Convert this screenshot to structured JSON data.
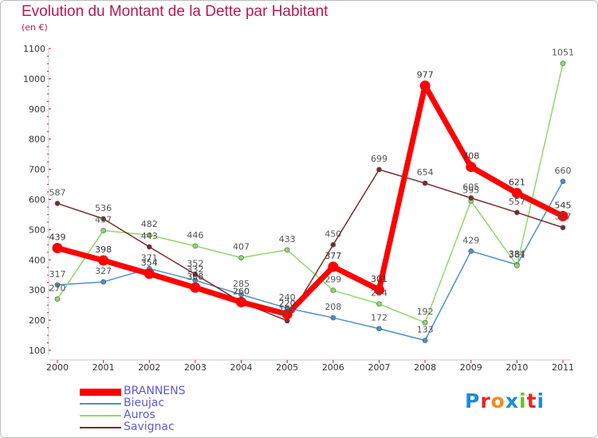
{
  "title": "Evolution du Montant de la Dette par Habitant",
  "unit": "(en €)",
  "logo": [
    "P",
    "r",
    "o",
    "x",
    "i",
    "t",
    "i"
  ],
  "logo_colors": [
    "#1f8bd6",
    "#e2262a",
    "#f28c1a",
    "#1f8bd6",
    "#6cbf2a",
    "#e2262a",
    "#1f8bd6"
  ],
  "chart_data": {
    "type": "line",
    "categories": [
      "2000",
      "2001",
      "2002",
      "2003",
      "2004",
      "2005",
      "2006",
      "2007",
      "2008",
      "2009",
      "2010",
      "2011"
    ],
    "ylim": [
      100,
      1100
    ],
    "yticks": [
      100,
      200,
      300,
      400,
      500,
      600,
      700,
      800,
      900,
      1000,
      1100
    ],
    "grid": false,
    "legend_position": "bottom-left",
    "series": [
      {
        "name": "BRANNENS",
        "color": "#ff0000",
        "thick": true,
        "values": [
          439,
          398,
          354,
          308,
          260,
          220,
          377,
          301,
          977,
          708,
          621,
          545
        ]
      },
      {
        "name": "Bieujac",
        "color": "#4d8fcb",
        "thick": false,
        "values": [
          317,
          327,
          371,
          332,
          285,
          240,
          208,
          172,
          133,
          429,
          384,
          660
        ]
      },
      {
        "name": "Auros",
        "color": "#8ed96a",
        "thick": false,
        "values": [
          270,
          497,
          482,
          446,
          407,
          433,
          299,
          254,
          192,
          595,
          381,
          1051
        ]
      },
      {
        "name": "Savignac",
        "color": "#7a2a2a",
        "thick": false,
        "values": [
          587,
          536,
          443,
          352,
          260,
          198,
          450,
          699,
          654,
          605,
          557,
          507
        ]
      }
    ]
  }
}
